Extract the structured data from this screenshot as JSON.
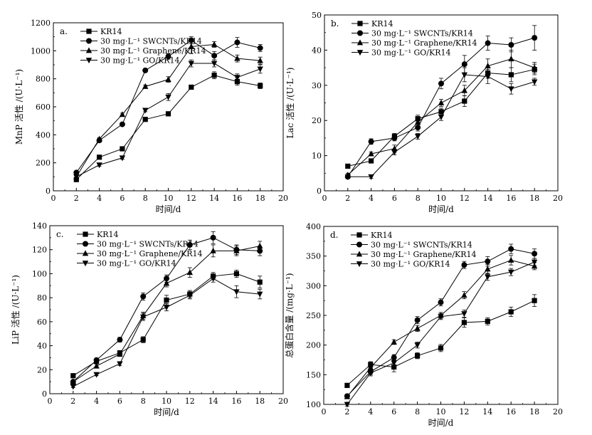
{
  "chart_data": [
    {
      "type": "line",
      "panel_label": "a.",
      "xlabel": "时间/d",
      "ylabel": "MnP 活性 /(U·L⁻¹)",
      "xlim": [
        0,
        20
      ],
      "ylim": [
        0,
        1200
      ],
      "xticks": [
        0,
        2,
        4,
        6,
        8,
        10,
        12,
        14,
        16,
        18,
        20
      ],
      "yticks": [
        0,
        200,
        400,
        600,
        800,
        1000,
        1200
      ],
      "legend": "top-left",
      "x": [
        2,
        4,
        6,
        8,
        10,
        12,
        14,
        16,
        18
      ],
      "series": [
        {
          "name": "KR14",
          "marker": "square",
          "values": [
            80,
            240,
            300,
            510,
            550,
            740,
            825,
            780,
            750
          ],
          "errors": [
            8,
            10,
            10,
            10,
            15,
            15,
            25,
            25,
            20
          ]
        },
        {
          "name": "30 mg·L⁻¹ SWCNTs/KR14",
          "marker": "circle",
          "values": [
            130,
            360,
            475,
            860,
            960,
            1075,
            965,
            1060,
            1020
          ],
          "errors": [
            8,
            12,
            10,
            10,
            20,
            25,
            30,
            35,
            25
          ]
        },
        {
          "name": "30 mg·L⁻¹ Graphene/KR14",
          "marker": "triangle-up",
          "values": [
            100,
            370,
            545,
            745,
            795,
            1030,
            1045,
            945,
            930
          ],
          "errors": [
            8,
            10,
            10,
            10,
            20,
            50,
            20,
            25,
            25
          ]
        },
        {
          "name": "30 mg·L⁻¹ GO/KR14",
          "marker": "triangle-down",
          "values": [
            100,
            185,
            235,
            575,
            670,
            910,
            910,
            810,
            870
          ],
          "errors": [
            8,
            10,
            10,
            10,
            25,
            25,
            25,
            25,
            30
          ]
        }
      ]
    },
    {
      "type": "line",
      "panel_label": "b.",
      "xlabel": "时间/d",
      "ylabel": "Lac 活性 /(U·L⁻¹)",
      "xlim": [
        0,
        20
      ],
      "ylim": [
        0,
        50
      ],
      "xticks": [
        0,
        2,
        4,
        6,
        8,
        10,
        12,
        14,
        16,
        18,
        20
      ],
      "yticks": [
        0,
        10,
        20,
        30,
        40,
        50
      ],
      "legend": "top-left",
      "x": [
        2,
        4,
        6,
        8,
        10,
        12,
        14,
        16,
        18
      ],
      "series": [
        {
          "name": "KR14",
          "marker": "square",
          "values": [
            7,
            8.5,
            15.5,
            20.5,
            22.5,
            25.5,
            33.5,
            33,
            34.5
          ],
          "errors": [
            0.5,
            0.5,
            0.8,
            1,
            1,
            1.5,
            1.5,
            2,
            1.5
          ]
        },
        {
          "name": "30 mg·L⁻¹ SWCNTs/KR14",
          "marker": "circle",
          "values": [
            4,
            14,
            15,
            18,
            30.5,
            36,
            42,
            41.5,
            43.5
          ],
          "errors": [
            0.5,
            0.8,
            0.8,
            1,
            1.5,
            2.5,
            2,
            2,
            3.5
          ]
        },
        {
          "name": "30 mg·L⁻¹ Graphene/KR14",
          "marker": "triangle-up",
          "values": [
            4.5,
            10.5,
            12,
            19.5,
            25,
            28.5,
            35.5,
            37.5,
            35
          ],
          "errors": [
            0.5,
            0.5,
            1,
            1,
            1,
            1.5,
            2,
            2.5,
            1.5
          ]
        },
        {
          "name": "30 mg·L⁻¹ GO/KR14",
          "marker": "triangle-down",
          "values": [
            4,
            4,
            11,
            15.5,
            21,
            33,
            32.5,
            29,
            31
          ],
          "errors": [
            0.5,
            0.5,
            0.8,
            0.8,
            1,
            2,
            2,
            1.5,
            1
          ]
        }
      ]
    },
    {
      "type": "line",
      "panel_label": "c.",
      "xlabel": "时间/d",
      "ylabel": "LiP 活性 /(U·L⁻¹)",
      "xlim": [
        0,
        20
      ],
      "ylim": [
        0,
        140
      ],
      "xticks": [
        0,
        2,
        4,
        6,
        8,
        10,
        12,
        14,
        16,
        18,
        20
      ],
      "yticks": [
        0,
        20,
        40,
        60,
        80,
        100,
        120,
        140
      ],
      "legend": "top-left",
      "x": [
        2,
        4,
        6,
        8,
        10,
        12,
        14,
        16,
        18
      ],
      "series": [
        {
          "name": "KR14",
          "marker": "square",
          "values": [
            15,
            27,
            34,
            45,
            78,
            83,
            98,
            100,
            93
          ],
          "errors": [
            1,
            1.5,
            2,
            2.5,
            4,
            3,
            3,
            3,
            5
          ]
        },
        {
          "name": "30 mg·L⁻¹ SWCNTs/KR14",
          "marker": "circle",
          "values": [
            10,
            28,
            45,
            81,
            96,
            124,
            130,
            120,
            119
          ],
          "errors": [
            1,
            1.5,
            2,
            3,
            3,
            4,
            5,
            4,
            4
          ]
        },
        {
          "name": "30 mg·L⁻¹ Graphene/KR14",
          "marker": "triangle-up",
          "values": [
            10,
            23,
            33,
            65,
            92,
            101,
            119,
            119,
            123
          ],
          "errors": [
            1,
            1.5,
            2,
            3,
            3,
            4,
            5,
            4,
            4
          ]
        },
        {
          "name": "30 mg·L⁻¹ GO/KR14",
          "marker": "triangle-down",
          "values": [
            6,
            16,
            25,
            64,
            72,
            82,
            96,
            85,
            83
          ],
          "errors": [
            1,
            1,
            1.5,
            3,
            3,
            3,
            3,
            5,
            4
          ]
        }
      ]
    },
    {
      "type": "line",
      "panel_label": "d.",
      "xlabel": "时间/d",
      "ylabel": "总蛋白含量 /(mg·L⁻¹)",
      "xlim": [
        0,
        20
      ],
      "ylim": [
        100,
        400
      ],
      "xticks": [
        0,
        2,
        4,
        6,
        8,
        10,
        12,
        14,
        16,
        18,
        20
      ],
      "yticks": [
        100,
        150,
        200,
        250,
        300,
        350,
        400
      ],
      "legend": "top-left",
      "x": [
        2,
        4,
        6,
        8,
        10,
        12,
        14,
        16,
        18
      ],
      "series": [
        {
          "name": "KR14",
          "marker": "square",
          "values": [
            132,
            167,
            163,
            182,
            195,
            238,
            240,
            256,
            275
          ],
          "errors": [
            3,
            5,
            8,
            5,
            6,
            8,
            6,
            8,
            10
          ]
        },
        {
          "name": "30 mg·L⁻¹ SWCNTs/KR14",
          "marker": "circle",
          "values": [
            114,
            155,
            179,
            242,
            272,
            335,
            341,
            362,
            354
          ],
          "errors": [
            3,
            5,
            5,
            6,
            6,
            6,
            8,
            8,
            8
          ]
        },
        {
          "name": "30 mg·L⁻¹ Graphene/KR14",
          "marker": "triangle-up",
          "values": [
            113,
            162,
            205,
            228,
            250,
            284,
            328,
            343,
            333
          ],
          "errors": [
            3,
            5,
            4,
            5,
            5,
            6,
            8,
            8,
            6
          ]
        },
        {
          "name": "30 mg·L⁻¹ GO/KR14",
          "marker": "triangle-down",
          "values": [
            100,
            153,
            170,
            200,
            248,
            253,
            315,
            323,
            340
          ],
          "errors": [
            3,
            5,
            5,
            5,
            5,
            6,
            6,
            6,
            6
          ]
        }
      ]
    }
  ]
}
